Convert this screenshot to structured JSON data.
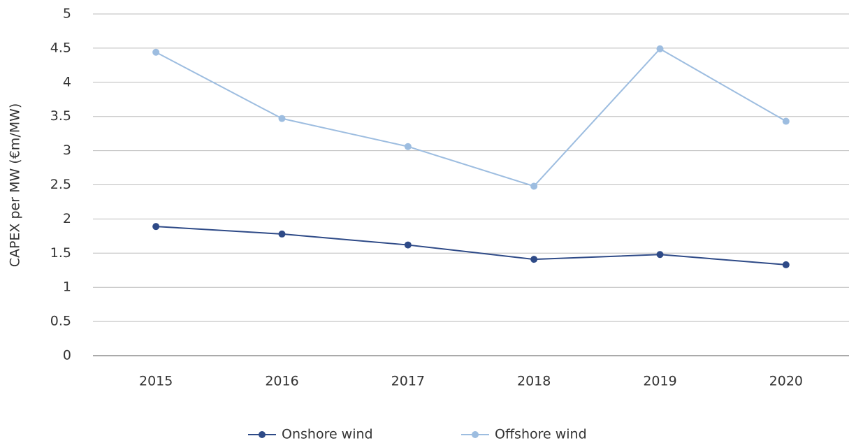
{
  "chart_data": {
    "type": "line",
    "y_label": "CAPEX per MW (€m/MW)",
    "categories": [
      "2015",
      "2016",
      "2017",
      "2018",
      "2019",
      "2020"
    ],
    "series": [
      {
        "name": "Onshore wind",
        "color": "#2e4a87",
        "values": [
          1.89,
          1.78,
          1.62,
          1.41,
          1.48,
          1.33
        ]
      },
      {
        "name": "Offshore wind",
        "color": "#9dbde0",
        "values": [
          4.44,
          3.47,
          3.06,
          2.48,
          4.49,
          3.43
        ]
      }
    ],
    "ylim": [
      0,
      5
    ],
    "yticks": [
      0,
      0.5,
      1,
      1.5,
      2,
      2.5,
      3,
      3.5,
      4,
      4.5,
      5
    ],
    "grid": true,
    "legend": "bottom"
  }
}
